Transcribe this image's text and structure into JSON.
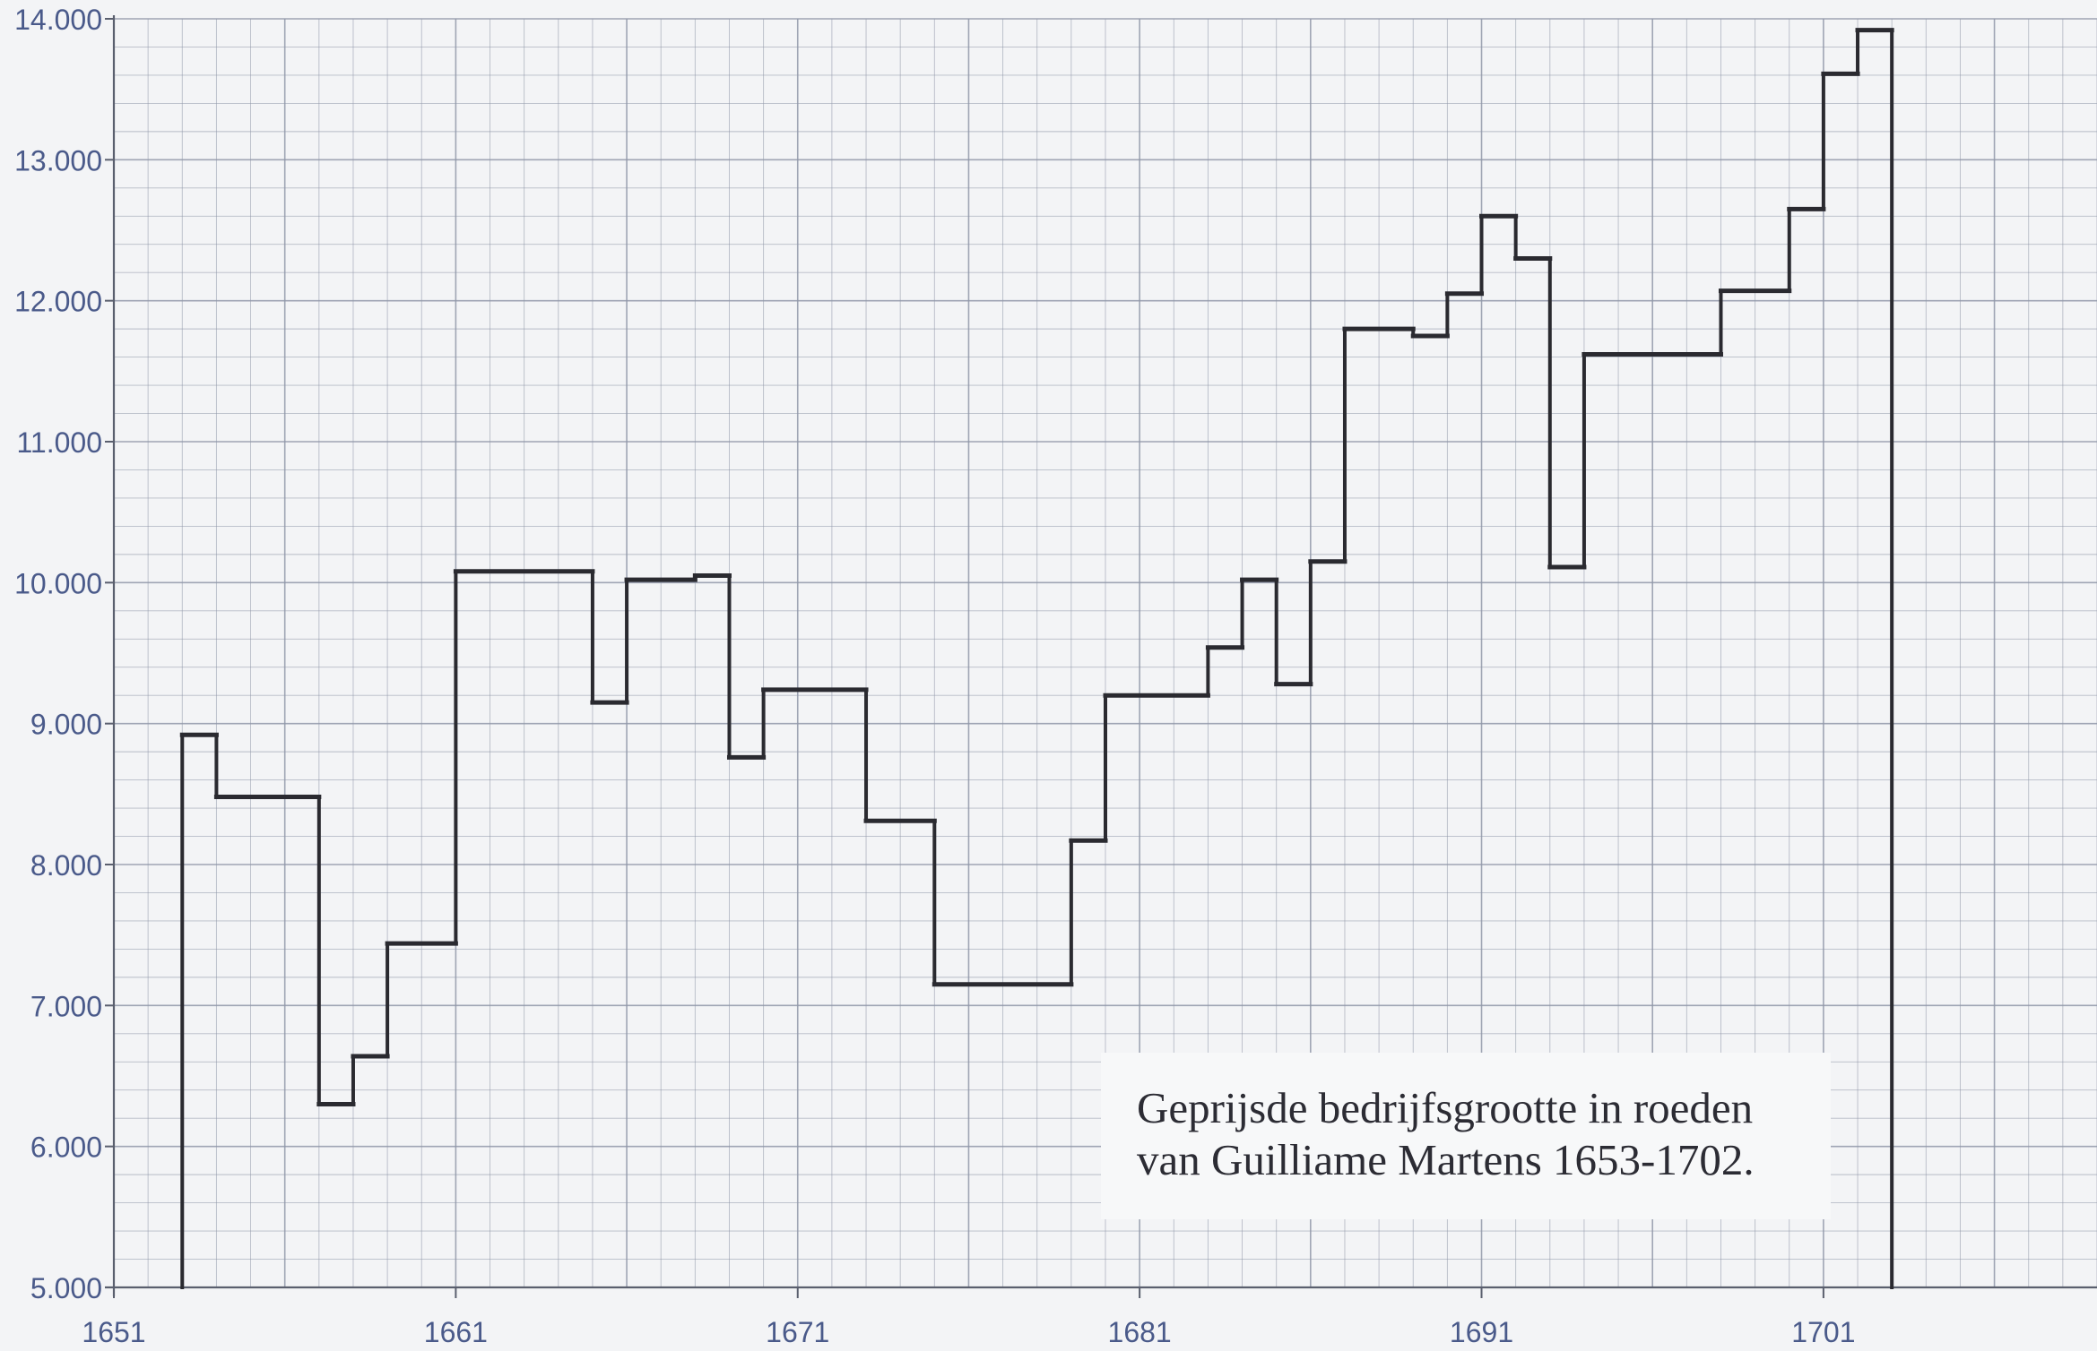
{
  "chart_data": {
    "type": "line",
    "line_shape": "step",
    "title": "",
    "xlabel": "",
    "ylabel": "",
    "xlim": [
      1651,
      1709
    ],
    "ylim": [
      5000,
      14000
    ],
    "x_ticks": [
      {
        "value": 1651,
        "label": "1651"
      },
      {
        "value": 1661,
        "label": "1661"
      },
      {
        "value": 1671,
        "label": "1671"
      },
      {
        "value": 1681,
        "label": "1681"
      },
      {
        "value": 1691,
        "label": "1691"
      },
      {
        "value": 1701,
        "label": "1701"
      }
    ],
    "y_ticks": [
      {
        "value": 5000,
        "label": "5.000"
      },
      {
        "value": 6000,
        "label": "6.000"
      },
      {
        "value": 7000,
        "label": "7.000"
      },
      {
        "value": 8000,
        "label": "8.000"
      },
      {
        "value": 9000,
        "label": "9.000"
      },
      {
        "value": 10000,
        "label": "10.000"
      },
      {
        "value": 11000,
        "label": "11.000"
      },
      {
        "value": 12000,
        "label": "12.000"
      },
      {
        "value": 13000,
        "label": "13.000"
      },
      {
        "value": 14000,
        "label": "14.000"
      }
    ],
    "grid": true,
    "annotation": {
      "lines": [
        "Geprijsde bedrijfsgrootte in roeden",
        "van Guilliame Martens 1653-1702."
      ],
      "placement": "bottom-right"
    },
    "colors": {
      "line": "#2a2a30",
      "grid": "#8f96a8",
      "axis": "#5a5f6e",
      "tick_label": "#4a5a8a",
      "background": "#f3f4f6"
    },
    "series": [
      {
        "start_year": 1653,
        "end_year": 1703,
        "baseline": 5000,
        "steps": [
          {
            "from": 1653.0,
            "to": 1654.0,
            "value": 8920
          },
          {
            "from": 1654.0,
            "to": 1657.0,
            "value": 8480
          },
          {
            "from": 1657.0,
            "to": 1658.0,
            "value": 6300
          },
          {
            "from": 1658.0,
            "to": 1659.0,
            "value": 6640
          },
          {
            "from": 1659.0,
            "to": 1661.0,
            "value": 7440
          },
          {
            "from": 1661.0,
            "to": 1665.0,
            "value": 10080
          },
          {
            "from": 1665.0,
            "to": 1666.0,
            "value": 9150
          },
          {
            "from": 1666.0,
            "to": 1668.0,
            "value": 10020
          },
          {
            "from": 1668.0,
            "to": 1669.0,
            "value": 10050
          },
          {
            "from": 1669.0,
            "to": 1670.0,
            "value": 8760
          },
          {
            "from": 1670.0,
            "to": 1673.0,
            "value": 9240
          },
          {
            "from": 1673.0,
            "to": 1675.0,
            "value": 8310
          },
          {
            "from": 1675.0,
            "to": 1679.0,
            "value": 7150
          },
          {
            "from": 1679.0,
            "to": 1680.0,
            "value": 8170
          },
          {
            "from": 1680.0,
            "to": 1683.0,
            "value": 9200
          },
          {
            "from": 1683.0,
            "to": 1684.0,
            "value": 9540
          },
          {
            "from": 1684.0,
            "to": 1685.0,
            "value": 10020
          },
          {
            "from": 1685.0,
            "to": 1686.0,
            "value": 9280
          },
          {
            "from": 1686.0,
            "to": 1687.0,
            "value": 10150
          },
          {
            "from": 1687.0,
            "to": 1689.0,
            "value": 11800
          },
          {
            "from": 1689.0,
            "to": 1690.0,
            "value": 11750
          },
          {
            "from": 1690.0,
            "to": 1691.0,
            "value": 12050
          },
          {
            "from": 1691.0,
            "to": 1692.0,
            "value": 12600
          },
          {
            "from": 1692.0,
            "to": 1693.0,
            "value": 12300
          },
          {
            "from": 1693.0,
            "to": 1694.0,
            "value": 10110
          },
          {
            "from": 1694.0,
            "to": 1698.0,
            "value": 11620
          },
          {
            "from": 1698.0,
            "to": 1700.0,
            "value": 12070
          },
          {
            "from": 1700.0,
            "to": 1701.0,
            "value": 12650
          },
          {
            "from": 1701.0,
            "to": 1702.0,
            "value": 13610
          },
          {
            "from": 1702.0,
            "to": 1703.0,
            "value": 13920
          }
        ]
      }
    ]
  }
}
